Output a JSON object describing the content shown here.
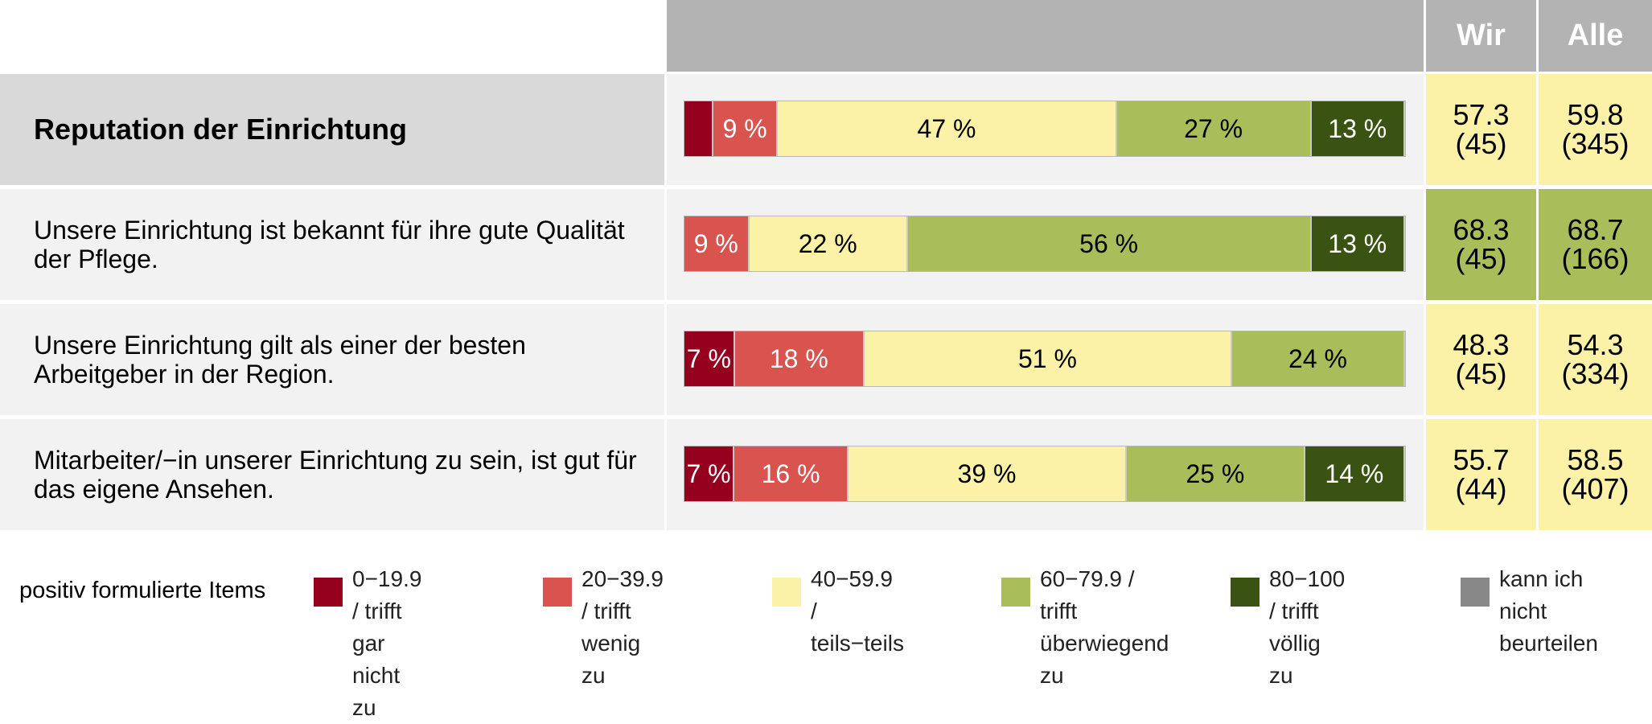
{
  "header": {
    "col_wir": "Wir",
    "col_alle": "Alle"
  },
  "colors": {
    "c0": "#96001f",
    "c1": "#d9534f",
    "c2": "#fbf2a8",
    "c3": "#a9bd5b",
    "c4": "#3a5313",
    "na": "#888888",
    "val_yellow": "#fbf2a8",
    "val_green": "#a9bd5b"
  },
  "chart_data": {
    "type": "bar",
    "orientation": "horizontal",
    "stacked": true,
    "series_names": [
      "0−19.9 / trifft gar nicht zu",
      "20−39.9 / trifft wenig zu",
      "40−59.9 / teils−teils",
      "60−79.9 / trifft überwiegend zu",
      "80−100 / trifft völlig zu",
      "kann ich nicht beurteilen"
    ],
    "rows": [
      {
        "label": "Reputation der Einrichtung",
        "main": true,
        "values": [
          4,
          9,
          47,
          27,
          13,
          0
        ],
        "labels": [
          "",
          "9 %",
          "47 %",
          "27 %",
          "13 %",
          ""
        ],
        "wir_mean": "57.3",
        "wir_n": "(45)",
        "alle_mean": "59.8",
        "alle_n": "(345)",
        "wir_color": "val_yellow",
        "alle_color": "val_yellow"
      },
      {
        "label": "Unsere Einrichtung ist bekannt für ihre gute Qualität der Pflege.",
        "main": false,
        "values": [
          0,
          9,
          22,
          56,
          13,
          0
        ],
        "labels": [
          "",
          "9 %",
          "22 %",
          "56 %",
          "13 %",
          ""
        ],
        "wir_mean": "68.3",
        "wir_n": "(45)",
        "alle_mean": "68.7",
        "alle_n": "(166)",
        "wir_color": "val_green",
        "alle_color": "val_green"
      },
      {
        "label": "Unsere Einrichtung gilt als einer der besten Arbeitgeber in der Region.",
        "main": false,
        "values": [
          7,
          18,
          51,
          24,
          0,
          0
        ],
        "labels": [
          "7 %",
          "18 %",
          "51 %",
          "24 %",
          "",
          ""
        ],
        "wir_mean": "48.3",
        "wir_n": "(45)",
        "alle_mean": "54.3",
        "alle_n": "(334)",
        "wir_color": "val_yellow",
        "alle_color": "val_yellow"
      },
      {
        "label": "Mitarbeiter/−in unserer Einrichtung zu sein, ist gut für das eigene Ansehen.",
        "main": false,
        "values": [
          7,
          16,
          39,
          25,
          14,
          0
        ],
        "labels": [
          "7 %",
          "16 %",
          "39 %",
          "25 %",
          "14 %",
          ""
        ],
        "wir_mean": "55.7",
        "wir_n": "(44)",
        "alle_mean": "58.5",
        "alle_n": "(407)",
        "wir_color": "val_yellow",
        "alle_color": "val_yellow"
      }
    ]
  },
  "legend": {
    "title": "positiv formulierte Items",
    "items": [
      {
        "line1": "0−19.9 / trifft gar",
        "line2": "nicht zu",
        "color": "c0"
      },
      {
        "line1": "20−39.9 / trifft",
        "line2": "wenig zu",
        "color": "c1"
      },
      {
        "line1": "40−59.9 /",
        "line2": "teils−teils",
        "color": "c2"
      },
      {
        "line1": "60−79.9 / trifft",
        "line2": "überwiegend zu",
        "color": "c3"
      },
      {
        "line1": "80−100 / trifft",
        "line2": "völlig zu",
        "color": "c4"
      },
      {
        "line1": "kann ich nicht",
        "line2": "beurteilen",
        "color": "na"
      }
    ]
  }
}
